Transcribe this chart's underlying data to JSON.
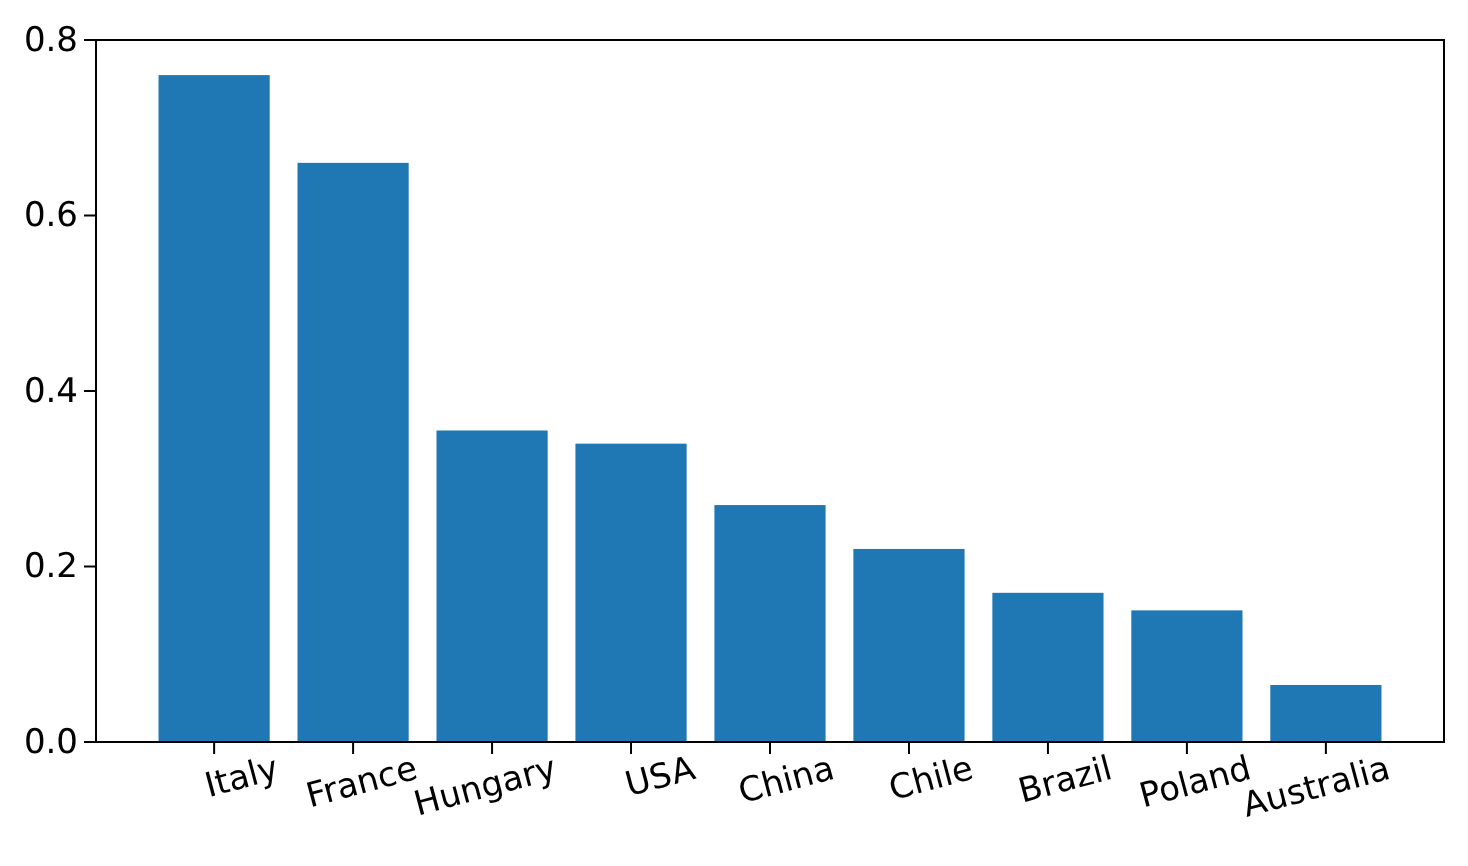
{
  "chart_data": {
    "type": "bar",
    "categories": [
      "Italy",
      "France",
      "Hungary",
      "USA",
      "China",
      "Chile",
      "Brazil",
      "Poland",
      "Australia"
    ],
    "values": [
      0.76,
      0.66,
      0.355,
      0.34,
      0.27,
      0.22,
      0.17,
      0.15,
      0.065
    ],
    "color": "#1f77b4",
    "ylim": [
      0,
      0.8
    ],
    "yticks": [
      {
        "value": 0,
        "label": "0.0"
      },
      {
        "value": 0.2,
        "label": "0.2"
      },
      {
        "value": 0.4,
        "label": "0.4"
      },
      {
        "value": 0.6,
        "label": "0.6"
      },
      {
        "value": 0.8,
        "label": "0.8"
      }
    ],
    "grid": false
  }
}
